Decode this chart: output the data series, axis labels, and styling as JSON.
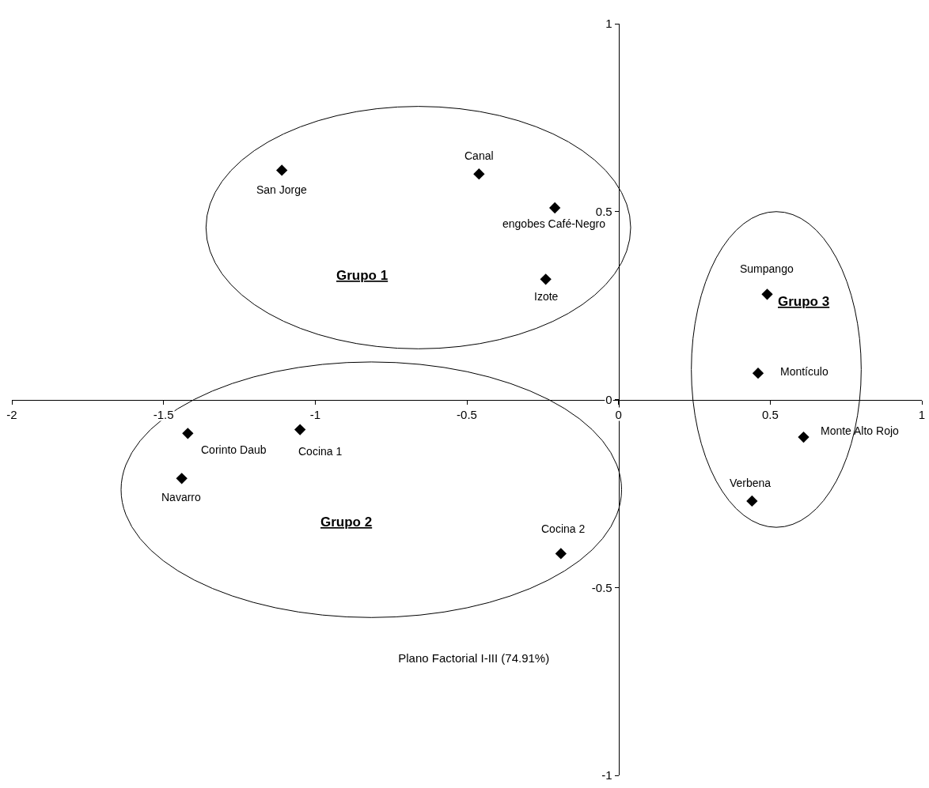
{
  "chart_data": {
    "type": "scatter",
    "title": "Plano Factorial I-III (74.91%)",
    "xlim": [
      -2,
      1
    ],
    "xticks": [
      -2,
      -1.5,
      -1,
      -0.5,
      0,
      0.5,
      1
    ],
    "ylim": [
      -1,
      1
    ],
    "yticks": [
      -1,
      -0.5,
      0,
      0.5,
      1
    ],
    "grid": false,
    "series": [
      {
        "color": "#000000",
        "marker": "diamond",
        "x": [
          -1.11,
          -0.46,
          -0.21,
          -0.24,
          0.49,
          0.46,
          0.61,
          0.44,
          -1.42,
          -1.05,
          -1.44,
          -0.19
        ],
        "values": [
          0.61,
          0.6,
          0.51,
          0.32,
          0.28,
          0.07,
          -0.1,
          -0.27,
          -0.09,
          -0.08,
          -0.21,
          -0.41
        ]
      }
    ],
    "annotations": [
      {
        "text": "San Jorge",
        "x": -1.11,
        "y": 0.61
      },
      {
        "text": "Canal",
        "x": -0.46,
        "y": 0.6
      },
      {
        "text": "engobes Café-Negro",
        "x": -0.21,
        "y": 0.51
      },
      {
        "text": "Izote",
        "x": -0.24,
        "y": 0.32
      },
      {
        "text": "Sumpango",
        "x": 0.49,
        "y": 0.28
      },
      {
        "text": "Montículo",
        "x": 0.46,
        "y": 0.07
      },
      {
        "text": "Monte Alto Rojo",
        "x": 0.61,
        "y": -0.1
      },
      {
        "text": "Verbena",
        "x": 0.44,
        "y": -0.27
      },
      {
        "text": "Corinto Daub",
        "x": -1.42,
        "y": -0.09
      },
      {
        "text": "Cocina 1",
        "x": -1.05,
        "y": -0.08
      },
      {
        "text": "Navarro",
        "x": -1.44,
        "y": -0.21
      },
      {
        "text": "Cocina 2",
        "x": -0.19,
        "y": -0.41
      },
      "Grupo 1",
      "Grupo 3",
      "Grupo 2"
    ]
  }
}
